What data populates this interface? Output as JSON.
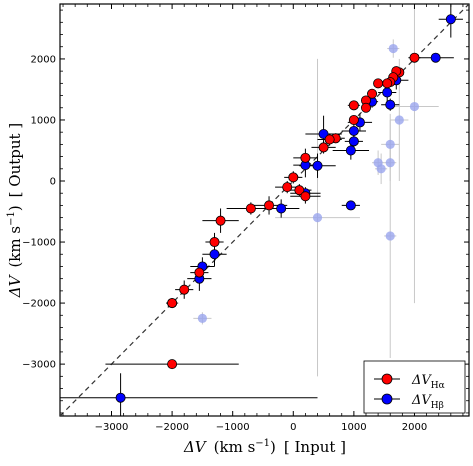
{
  "chart_data": {
    "type": "scatter",
    "xlabel": {
      "symbol": "ΔV",
      "unit": "(km s",
      "exp": "−1",
      "close": ")",
      "tag": "[ Input ]"
    },
    "ylabel": {
      "symbol": "ΔV",
      "unit": "(km s",
      "exp": "−1",
      "close": ")",
      "tag": "[ Output ]"
    },
    "xlim": [
      -3850,
      2900
    ],
    "ylim": [
      -3850,
      2900
    ],
    "xticks": [
      -3000,
      -2000,
      -1000,
      0,
      1000,
      2000
    ],
    "yticks": [
      -3000,
      -2000,
      -1000,
      0,
      1000,
      2000
    ],
    "tick_labels_x": [
      "−3000",
      "−2000",
      "−1000",
      "0",
      "1000",
      "2000"
    ],
    "tick_labels_y": [
      "−3000",
      "−2000",
      "−1000",
      "0",
      "1000",
      "2000"
    ],
    "reference_line": "1:1 dashed",
    "legend_position": "bottom-right",
    "colors": {
      "halpha": "#ff0000",
      "hbeta": "#0000ff",
      "faded": "#9aa5ee"
    },
    "series": [
      {
        "name": "ΔV_Hα",
        "legend_main": "ΔV",
        "legend_sub": "Hα",
        "points": [
          {
            "x": 2000,
            "y": 2020,
            "xe": 100,
            "ye": 60
          },
          {
            "x": 1750,
            "y": 1780,
            "xe": 60,
            "ye": 40
          },
          {
            "x": 1700,
            "y": 1800,
            "xe": 80,
            "ye": 40
          },
          {
            "x": 1650,
            "y": 1700,
            "xe": 60,
            "ye": 40
          },
          {
            "x": 1600,
            "y": 1620,
            "xe": 80,
            "ye": 40
          },
          {
            "x": 1550,
            "y": 1600,
            "xe": 60,
            "ye": 40
          },
          {
            "x": 1400,
            "y": 1600,
            "xe": 60,
            "ye": 40
          },
          {
            "x": 1300,
            "y": 1430,
            "xe": 80,
            "ye": 40
          },
          {
            "x": 1200,
            "y": 1320,
            "xe": 60,
            "ye": 40
          },
          {
            "x": 1200,
            "y": 1200,
            "xe": 60,
            "ye": 40
          },
          {
            "x": 1000,
            "y": 1240,
            "xe": 100,
            "ye": 60
          },
          {
            "x": 1000,
            "y": 1000,
            "xe": 80,
            "ye": 60
          },
          {
            "x": 700,
            "y": 700,
            "xe": 150,
            "ye": 80
          },
          {
            "x": 600,
            "y": 680,
            "xe": 200,
            "ye": 100
          },
          {
            "x": 500,
            "y": 550,
            "xe": 200,
            "ye": 100
          },
          {
            "x": 200,
            "y": 380,
            "xe": 200,
            "ye": 150
          },
          {
            "x": 0,
            "y": 60,
            "xe": 150,
            "ye": 100
          },
          {
            "x": 100,
            "y": -150,
            "xe": 200,
            "ye": 100
          },
          {
            "x": 200,
            "y": -250,
            "xe": 250,
            "ye": 120
          },
          {
            "x": -100,
            "y": -100,
            "xe": 200,
            "ye": 100
          },
          {
            "x": -400,
            "y": -400,
            "xe": 300,
            "ye": 150
          },
          {
            "x": -700,
            "y": -450,
            "xe": 400,
            "ye": 100
          },
          {
            "x": -1200,
            "y": -650,
            "xe": 300,
            "ye": 200
          },
          {
            "x": -1300,
            "y": -1000,
            "xe": 150,
            "ye": 150
          },
          {
            "x": -1550,
            "y": -1500,
            "xe": 150,
            "ye": 150
          },
          {
            "x": -1800,
            "y": -1780,
            "xe": 150,
            "ye": 150
          },
          {
            "x": -2000,
            "y": -2000,
            "xe": 80,
            "ye": 60
          },
          {
            "x": -2000,
            "y": -3000,
            "xe": 1100,
            "ye": 0
          }
        ]
      },
      {
        "name": "ΔV_Hβ",
        "legend_main": "ΔV",
        "legend_sub": "Hβ",
        "points": [
          {
            "x": 2600,
            "y": 2650,
            "xe": 200,
            "ye": 300
          },
          {
            "x": 2350,
            "y": 2020,
            "xe": 300,
            "ye": 0
          },
          {
            "x": 1700,
            "y": 1650,
            "xe": 200,
            "ye": 150
          },
          {
            "x": 1550,
            "y": 1450,
            "xe": 150,
            "ye": 150
          },
          {
            "x": 1600,
            "y": 1250,
            "xe": 150,
            "ye": 100
          },
          {
            "x": 1300,
            "y": 1300,
            "xe": 100,
            "ye": 100
          },
          {
            "x": 1100,
            "y": 960,
            "xe": 200,
            "ye": 150
          },
          {
            "x": 1000,
            "y": 820,
            "xe": 200,
            "ye": 100
          },
          {
            "x": 1000,
            "y": 650,
            "xe": 150,
            "ye": 200
          },
          {
            "x": 950,
            "y": 500,
            "xe": 300,
            "ye": 150
          },
          {
            "x": 500,
            "y": 770,
            "xe": 300,
            "ye": 300
          },
          {
            "x": 400,
            "y": 250,
            "xe": 300,
            "ye": 200
          },
          {
            "x": 200,
            "y": 260,
            "xe": 200,
            "ye": 200
          },
          {
            "x": 200,
            "y": -200,
            "xe": 250,
            "ye": 100
          },
          {
            "x": -200,
            "y": -450,
            "xe": 300,
            "ye": 150
          },
          {
            "x": 950,
            "y": -400,
            "xe": 150,
            "ye": 0
          },
          {
            "x": -1300,
            "y": -1200,
            "xe": 200,
            "ye": 200
          },
          {
            "x": -1500,
            "y": -1400,
            "xe": 200,
            "ye": 150
          },
          {
            "x": -1550,
            "y": -1600,
            "xe": 200,
            "ye": 200
          },
          {
            "x": -2000,
            "y": -2000,
            "xe": 100,
            "ye": 80
          },
          {
            "x": -2850,
            "y": -3550,
            "xe": 3250,
            "ye": 400
          }
        ]
      },
      {
        "name": "",
        "faded": true,
        "points": [
          {
            "x": 1650,
            "y": 2170,
            "xe": 100,
            "ye": 150
          },
          {
            "x": 2000,
            "y": 1220,
            "xe": 400,
            "ye": 3220
          },
          {
            "x": 1750,
            "y": 1000,
            "xe": 150,
            "ye": 1000
          },
          {
            "x": 1600,
            "y": 600,
            "xe": 150,
            "ye": 400
          },
          {
            "x": 1600,
            "y": 300,
            "xe": 100,
            "ye": 300
          },
          {
            "x": 1400,
            "y": 300,
            "xe": 100,
            "ye": 200
          },
          {
            "x": 1450,
            "y": 200,
            "xe": 100,
            "ye": 250
          },
          {
            "x": 1600,
            "y": -900,
            "xe": 100,
            "ye": 2000
          },
          {
            "x": 400,
            "y": -600,
            "xe": 700,
            "ye": 2600
          },
          {
            "x": -1500,
            "y": -2250,
            "xe": 150,
            "ye": 100
          }
        ]
      }
    ]
  }
}
